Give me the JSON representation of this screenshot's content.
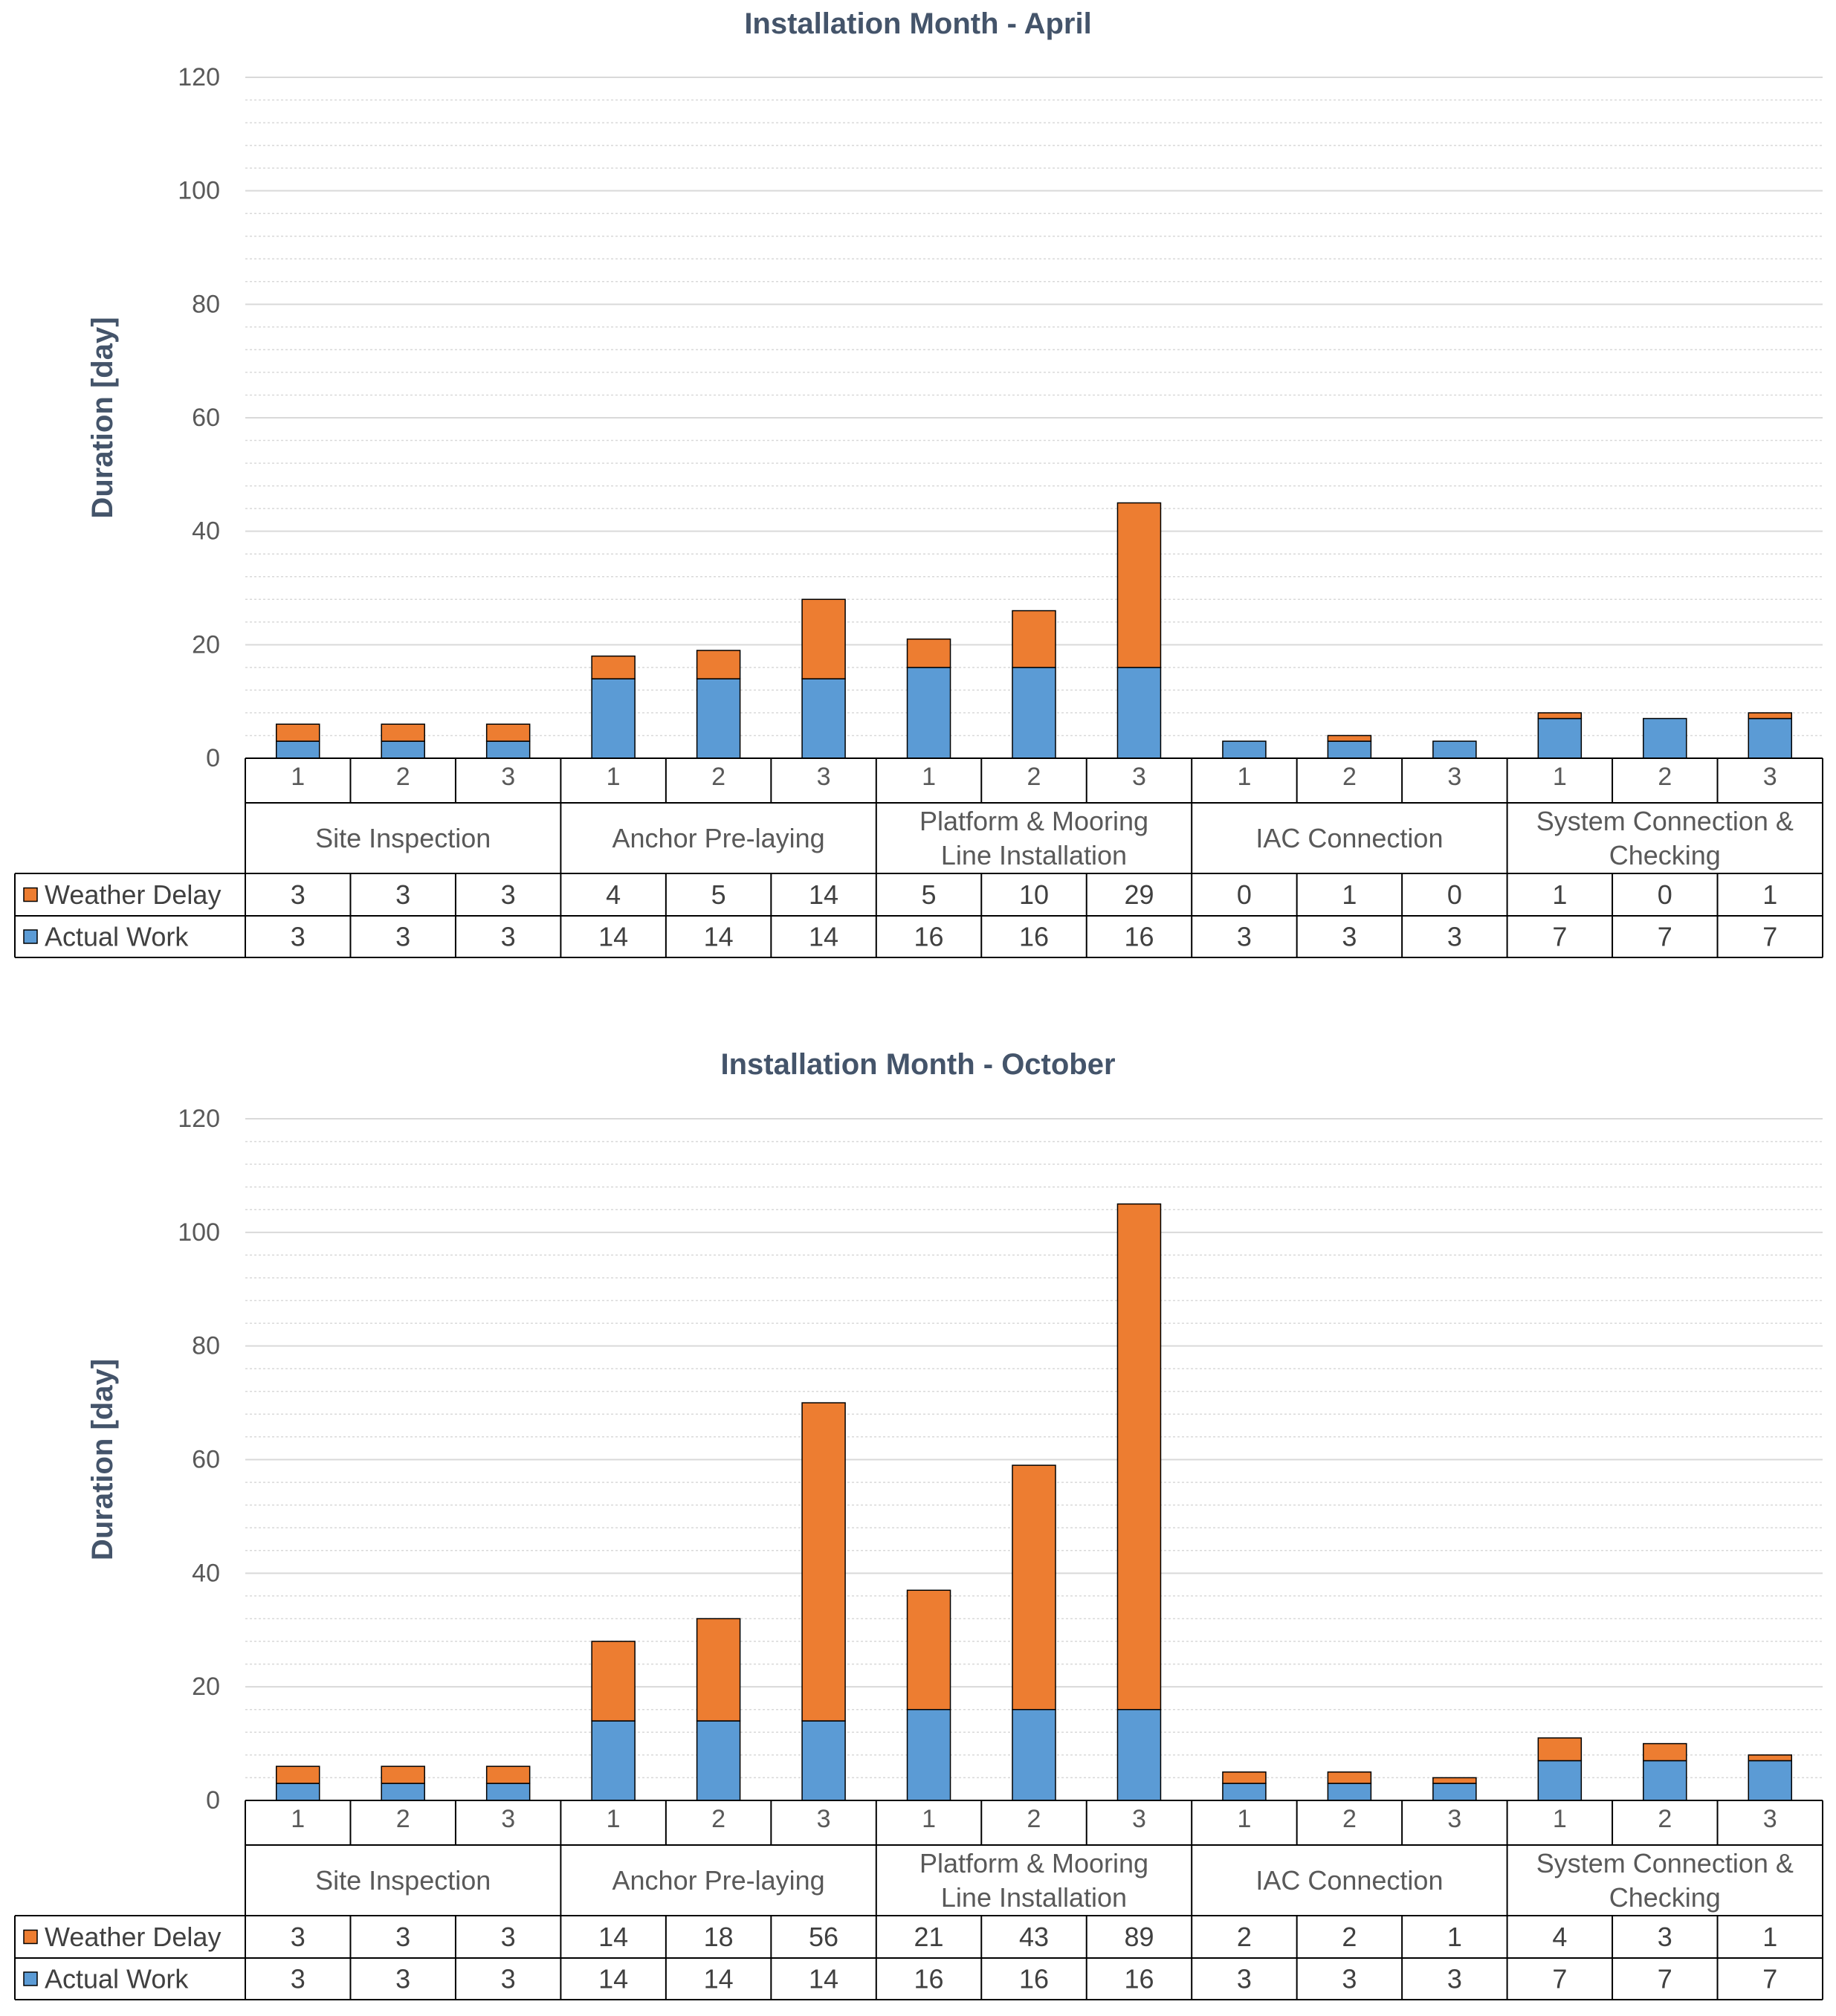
{
  "colors": {
    "weather_delay": "#ED7D31",
    "actual_work": "#5B9BD5",
    "title": "#44546A",
    "axis_text": "#595959",
    "table_text": "#404040",
    "grid_major": "#D9D9D9",
    "grid_minor": "#D9D9D9",
    "border": "#000000"
  },
  "chart_data": [
    {
      "type": "bar",
      "stacked": true,
      "title": "Installation Month - April",
      "ylabel": "Duration [day]",
      "xlabel": "",
      "ylim": [
        0,
        120
      ],
      "yticks": [
        0,
        20,
        40,
        60,
        80,
        100,
        120
      ],
      "minor_step": 4,
      "groups": [
        "Site Inspection",
        "Anchor Pre-laying",
        "Platform & Mooring Line Installation",
        "IAC Connection",
        "System Connection & Checking"
      ],
      "group_label_lines": [
        [
          "Site Inspection"
        ],
        [
          "Anchor Pre-laying"
        ],
        [
          "Platform & Mooring",
          "Line Installation"
        ],
        [
          "IAC Connection"
        ],
        [
          "System Connection &",
          "Checking"
        ]
      ],
      "categories": [
        "1",
        "2",
        "3",
        "1",
        "2",
        "3",
        "1",
        "2",
        "3",
        "1",
        "2",
        "3",
        "1",
        "2",
        "3"
      ],
      "series": [
        {
          "name": "Weather Delay",
          "values": [
            3,
            3,
            3,
            4,
            5,
            14,
            5,
            10,
            29,
            0,
            1,
            0,
            1,
            0,
            1
          ],
          "labels": [
            "3",
            "3",
            "3",
            "4",
            "5",
            "14",
            "5",
            "10",
            "29",
            "0",
            "1",
            "0",
            "1",
            "0",
            "1"
          ]
        },
        {
          "name": "Actual Work",
          "values": [
            3,
            3,
            3,
            14,
            14,
            14,
            16,
            16,
            16,
            3,
            3,
            3,
            7,
            7,
            7
          ],
          "labels": [
            "3",
            "3",
            "3",
            "14",
            "14",
            "14",
            "16",
            "16",
            "16",
            "3",
            "3",
            "3",
            "7",
            "7",
            "7"
          ]
        }
      ],
      "legend_position": "data-table"
    },
    {
      "type": "bar",
      "stacked": true,
      "title": "Installation Month - October",
      "ylabel": "Duration [day]",
      "xlabel": "",
      "ylim": [
        0,
        120
      ],
      "yticks": [
        0,
        20,
        40,
        60,
        80,
        100,
        120
      ],
      "minor_step": 4,
      "groups": [
        "Site Inspection",
        "Anchor Pre-laying",
        "Platform & Mooring Line Installation",
        "IAC Connection",
        "System Connection & Checking"
      ],
      "group_label_lines": [
        [
          "Site Inspection"
        ],
        [
          "Anchor Pre-laying"
        ],
        [
          "Platform & Mooring",
          "Line Installation"
        ],
        [
          "IAC Connection"
        ],
        [
          "System Connection &",
          "Checking"
        ]
      ],
      "categories": [
        "1",
        "2",
        "3",
        "1",
        "2",
        "3",
        "1",
        "2",
        "3",
        "1",
        "2",
        "3",
        "1",
        "2",
        "3"
      ],
      "series": [
        {
          "name": "Weather Delay",
          "values": [
            3,
            3,
            3,
            14,
            18,
            56,
            21,
            43,
            89,
            2,
            2,
            1,
            4,
            3,
            1
          ],
          "labels": [
            "3",
            "3",
            "3",
            "14",
            "18",
            "56",
            "21",
            "43",
            "89",
            "2",
            "2",
            "1",
            "4",
            "3",
            "1"
          ]
        },
        {
          "name": "Actual Work",
          "values": [
            3,
            3,
            3,
            14,
            14,
            14,
            16,
            16,
            16,
            3,
            3,
            3,
            7,
            7,
            7
          ],
          "labels": [
            "3",
            "3",
            "3",
            "14",
            "14",
            "14",
            "16",
            "16",
            "16",
            "3",
            "3",
            "3",
            "7",
            "7",
            "7"
          ]
        }
      ],
      "legend_position": "data-table"
    }
  ]
}
